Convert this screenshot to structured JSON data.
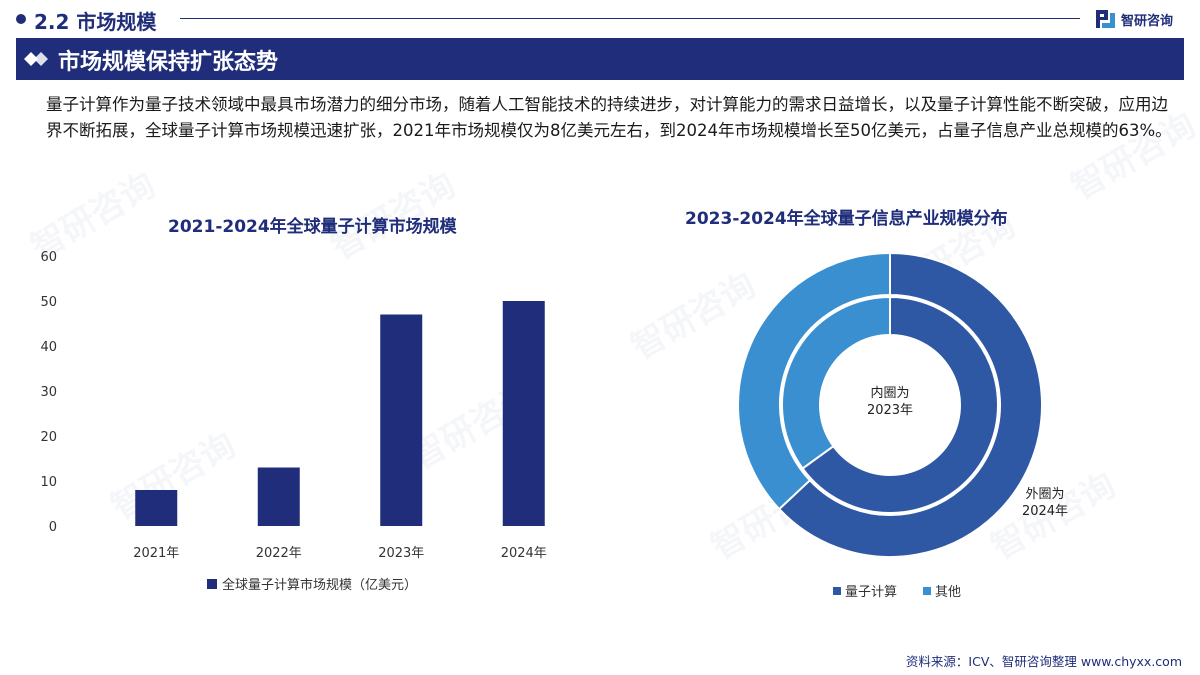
{
  "header": {
    "section_title": "2.2 市场规模",
    "brand_name": "智研咨询"
  },
  "banner": {
    "title": "市场规模保持扩张态势"
  },
  "body": {
    "text": "量子计算作为量子技术领域中最具市场潜力的细分市场，随着人工智能技术的持续进步，对计算能力的需求日益增长，以及量子计算性能不断突破，应用边界不断拓展，全球量子计算市场规模迅速扩张，2021年市场规模仅为8亿美元左右，到2024年市场规模增长至50亿美元，占量子信息产业总规模的63%。"
  },
  "watermark_text": "智研咨询",
  "chart_data": [
    {
      "type": "bar",
      "title": "2021-2024年全球量子计算市场规模",
      "categories": [
        "2021年",
        "2022年",
        "2023年",
        "2024年"
      ],
      "series": [
        {
          "name": "全球量子计算市场规模（亿美元）",
          "values": [
            8,
            13,
            47,
            50
          ],
          "color": "#1f2d7a"
        }
      ],
      "yticks": [
        0,
        10,
        20,
        30,
        40,
        50,
        60
      ],
      "ylim": [
        0,
        60
      ],
      "xlabel": "",
      "ylabel": "",
      "grid": false,
      "legend": "bottom"
    },
    {
      "type": "pie",
      "subtype": "donut",
      "title": "2023-2024年全球量子信息产业规模分布",
      "inner_label": "内圈为\n2023年",
      "outer_label": "外圈为\n2024年",
      "legend": "bottom",
      "rings": [
        {
          "year": "2023年",
          "position": "inner",
          "slices": [
            {
              "name": "量子计算",
              "value": 65
            },
            {
              "name": "其他",
              "value": 35
            }
          ]
        },
        {
          "year": "2024年",
          "position": "outer",
          "slices": [
            {
              "name": "量子计算",
              "value": 63
            },
            {
              "name": "其他",
              "value": 37
            }
          ]
        }
      ],
      "colors": {
        "量子计算": "#2e57a4",
        "其他": "#3a8fd0"
      }
    }
  ],
  "footer": {
    "source": "资料来源：ICV、智研咨询整理 www.chyxx.com"
  }
}
